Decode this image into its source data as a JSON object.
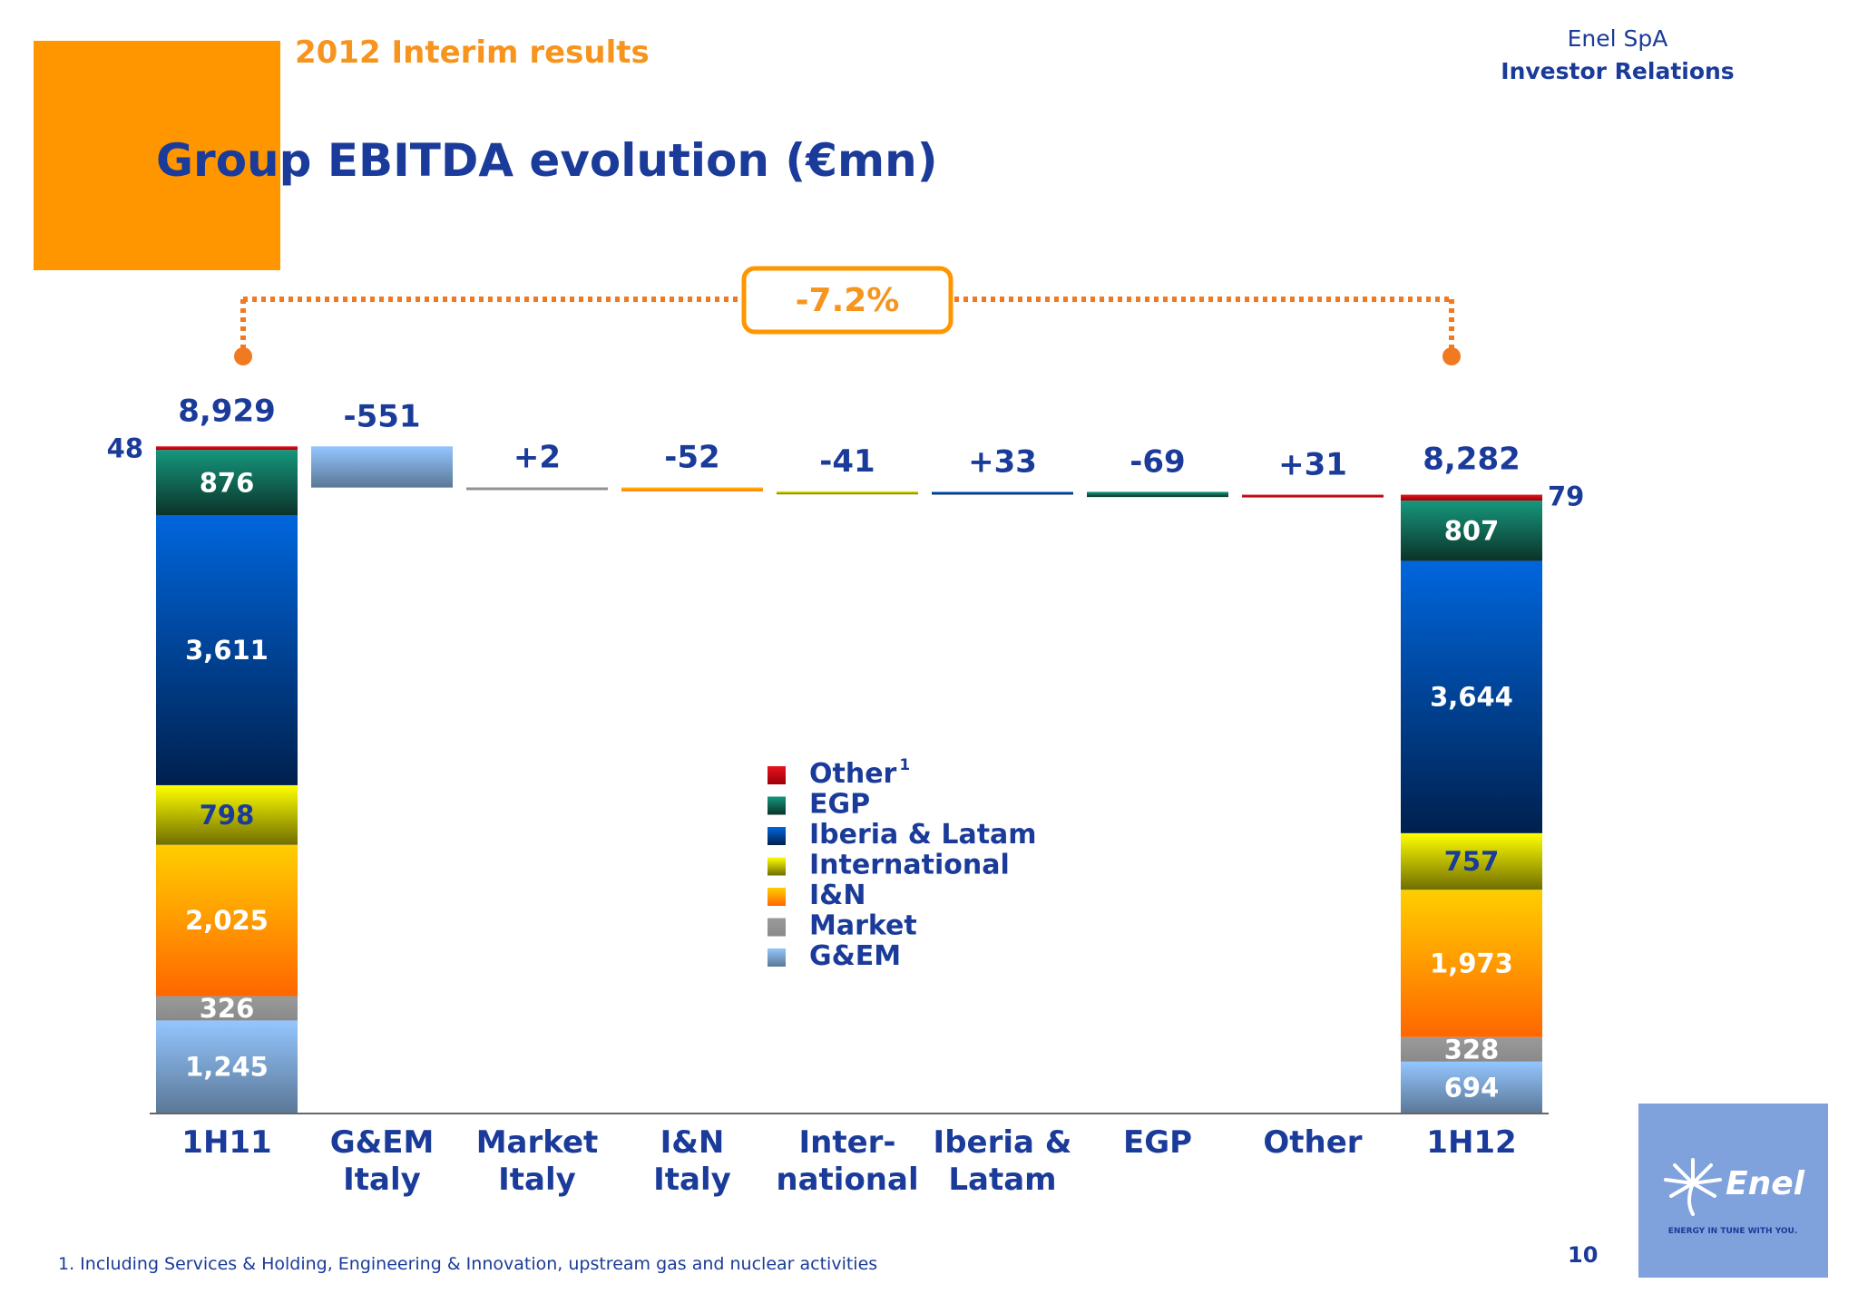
{
  "header": {
    "subtitle": "2012 Interim results",
    "company": "Enel SpA",
    "department": "Investor Relations",
    "title": "Group EBITDA evolution (€mn)"
  },
  "footer": {
    "footnote": "1. Including Services & Holding, Engineering & Innovation, upstream gas and nuclear activities",
    "page_number": "10",
    "logo_text": "Enel",
    "logo_tagline": "ENERGY IN TUNE WITH YOU."
  },
  "colors": {
    "brand_orange": "#ff9600",
    "title_blue": "#1a3b99",
    "bracket_orange": "#f07a22"
  },
  "chart_data": {
    "type": "waterfall",
    "change_label": "-7.2%",
    "segment_order": [
      "G&EM",
      "Market",
      "I&N",
      "International",
      "Iberia & Latam",
      "EGP",
      "Other"
    ],
    "segment_colors": {
      "G&EM": [
        "#94c6ff",
        "#5b7796"
      ],
      "Market": [
        "#9a9a9a",
        "#8a8a8a"
      ],
      "I&N": [
        "#ffce00",
        "#ff6600"
      ],
      "International": [
        "#ffff00",
        "#706e00"
      ],
      "Iberia & Latam": [
        "#0066dd",
        "#00204e"
      ],
      "EGP": [
        "#16977d",
        "#0b3329"
      ],
      "Other": [
        "#e8141c",
        "#9b000b"
      ]
    },
    "legend": [
      {
        "key": "Other",
        "label": "Other",
        "sup": "1"
      },
      {
        "key": "EGP",
        "label": "EGP",
        "sup": ""
      },
      {
        "key": "Iberia & Latam",
        "label": "Iberia & Latam",
        "sup": ""
      },
      {
        "key": "International",
        "label": "International",
        "sup": ""
      },
      {
        "key": "I&N",
        "label": "I&N",
        "sup": ""
      },
      {
        "key": "Market",
        "label": "Market",
        "sup": ""
      },
      {
        "key": "G&EM",
        "label": "G&EM",
        "sup": ""
      }
    ],
    "totals": [
      {
        "category": [
          "1H11"
        ],
        "total_label": "8,929",
        "segments": [
          {
            "key": "G&EM",
            "value": 1245,
            "label": "1,245"
          },
          {
            "key": "Market",
            "value": 326,
            "label": "326"
          },
          {
            "key": "I&N",
            "value": 2025,
            "label": "2,025"
          },
          {
            "key": "International",
            "value": 798,
            "label": "798"
          },
          {
            "key": "Iberia & Latam",
            "value": 3611,
            "label": "3,611"
          },
          {
            "key": "EGP",
            "value": 876,
            "label": "876"
          },
          {
            "key": "Other",
            "value": 48,
            "label": "48"
          }
        ]
      },
      {
        "category": [
          "1H12"
        ],
        "total_label": "8,282",
        "segments": [
          {
            "key": "G&EM",
            "value": 694,
            "label": "694"
          },
          {
            "key": "Market",
            "value": 328,
            "label": "328"
          },
          {
            "key": "I&N",
            "value": 1973,
            "label": "1,973"
          },
          {
            "key": "International",
            "value": 757,
            "label": "757"
          },
          {
            "key": "Iberia & Latam",
            "value": 3644,
            "label": "3,644"
          },
          {
            "key": "EGP",
            "value": 807,
            "label": "807"
          },
          {
            "key": "Other",
            "value": 79,
            "label": "79"
          }
        ]
      }
    ],
    "changes": [
      {
        "category": [
          "G&EM",
          "Italy"
        ],
        "key": "G&EM",
        "value": -551,
        "label": "-551"
      },
      {
        "category": [
          "Market",
          "Italy"
        ],
        "key": "Market",
        "value": 2,
        "label": "+2"
      },
      {
        "category": [
          "I&N",
          "Italy"
        ],
        "key": "I&N",
        "value": -52,
        "label": "-52"
      },
      {
        "category": [
          "Inter-",
          "national"
        ],
        "key": "International",
        "value": -41,
        "label": "-41"
      },
      {
        "category": [
          "Iberia &",
          "Latam"
        ],
        "key": "Iberia & Latam",
        "value": 33,
        "label": "+33"
      },
      {
        "category": [
          "EGP"
        ],
        "key": "EGP",
        "value": -69,
        "label": "-69"
      },
      {
        "category": [
          "Other"
        ],
        "key": "Other",
        "value": 31,
        "label": "+31"
      }
    ]
  }
}
